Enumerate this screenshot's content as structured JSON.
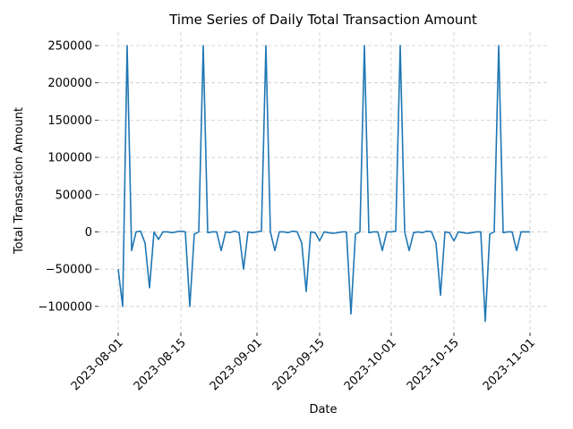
{
  "chart_data": {
    "type": "line",
    "title": "Time Series of Daily Total Transaction Amount",
    "xlabel": "Date",
    "ylabel": "Total Transaction Amount",
    "grid": true,
    "line_color": "#1f77b4",
    "grid_color": "#cccccc",
    "x_start": "2023-08-01",
    "xlim": [
      "2023-08-01",
      "2023-11-01"
    ],
    "ylim": [
      -135000,
      268000
    ],
    "x_ticks": [
      "2023-08-01",
      "2023-08-15",
      "2023-09-01",
      "2023-09-15",
      "2023-10-01",
      "2023-10-15",
      "2023-11-01"
    ],
    "y_ticks": [
      -100000,
      -50000,
      0,
      50000,
      100000,
      150000,
      200000,
      250000
    ],
    "y_tick_labels": [
      "−100000",
      "−50000",
      "0",
      "50000",
      "100000",
      "150000",
      "200000",
      "250000"
    ],
    "series": [
      {
        "values": [
          -50000,
          -100000,
          250000,
          -25000,
          0,
          1000,
          -15000,
          -75000,
          0,
          -10000,
          0,
          0,
          -1000,
          0,
          1000,
          0,
          -100000,
          -3000,
          0,
          250000,
          -1000,
          0,
          0,
          -25000,
          0,
          -1000,
          1000,
          -1000,
          -50000,
          0,
          -1000,
          0,
          1000,
          250000,
          0,
          -25000,
          0,
          0,
          -1000,
          1000,
          0,
          -15000,
          -80000,
          0,
          -1000,
          -12000,
          0,
          -1000,
          -2000,
          -1000,
          0,
          0,
          -110000,
          -3000,
          0,
          250000,
          -1000,
          0,
          0,
          -25000,
          0,
          0,
          1000,
          250000,
          0,
          -25000,
          -1000,
          0,
          -1000,
          1000,
          0,
          -15000,
          -85000,
          0,
          -1000,
          -12000,
          0,
          -1000,
          -2000,
          -1000,
          0,
          0,
          -120000,
          -3000,
          0,
          250000,
          -1000,
          0,
          0,
          -25000,
          0,
          0,
          0
        ]
      }
    ]
  }
}
